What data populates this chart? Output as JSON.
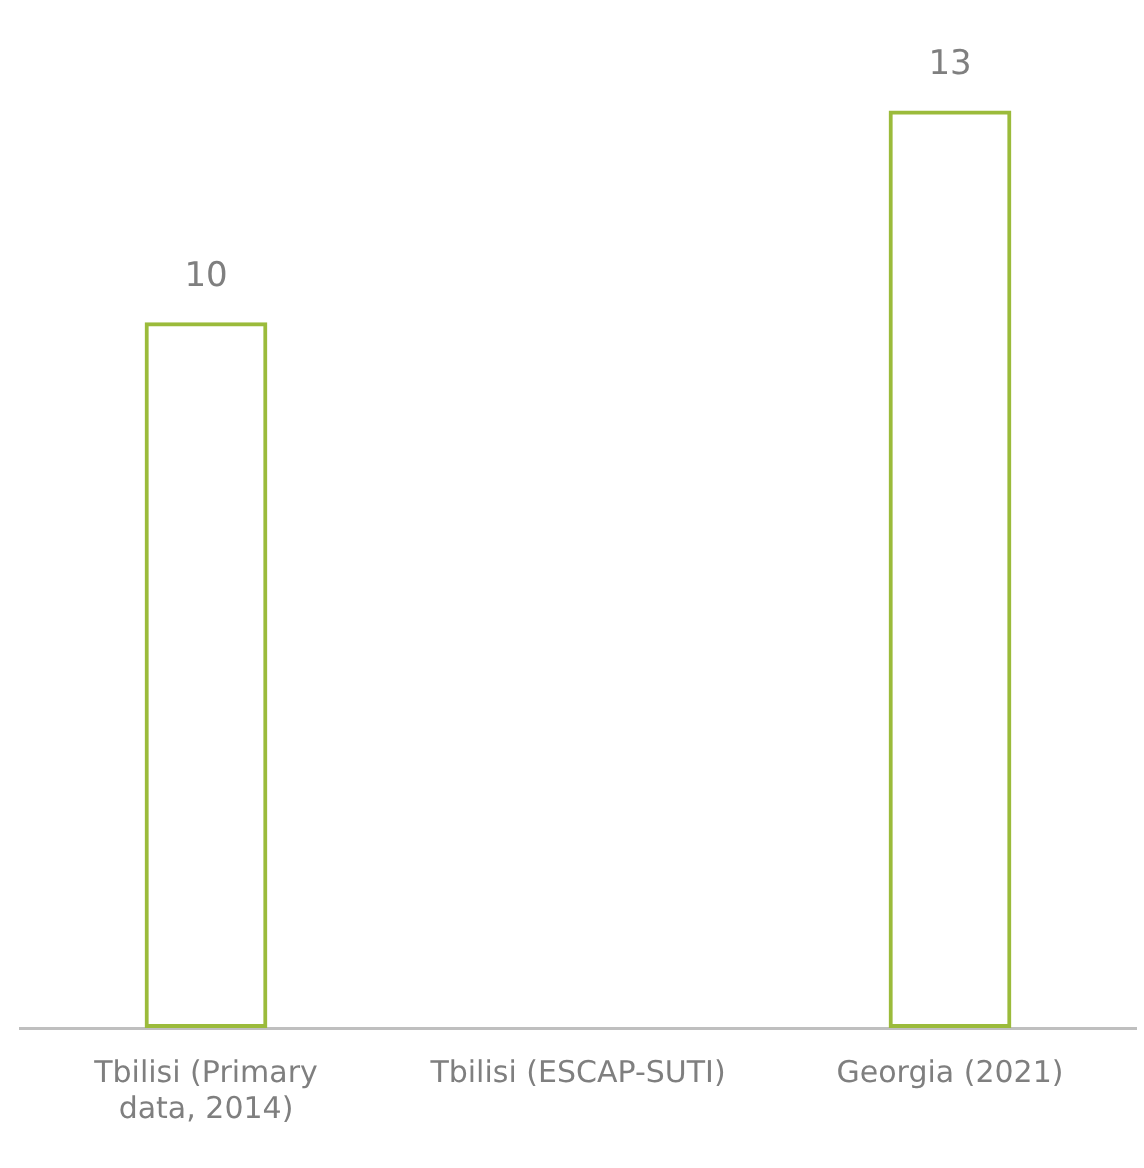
{
  "chart_data": {
    "type": "bar",
    "categories": [
      "Tbilisi (Primary data, 2014)",
      "Tbilisi (ESCAP-SUTI)",
      "Georgia (2021)"
    ],
    "values": [
      10,
      null,
      13
    ],
    "color": "#9bbb3b",
    "data_labels": true,
    "grid": false,
    "legend": false
  }
}
